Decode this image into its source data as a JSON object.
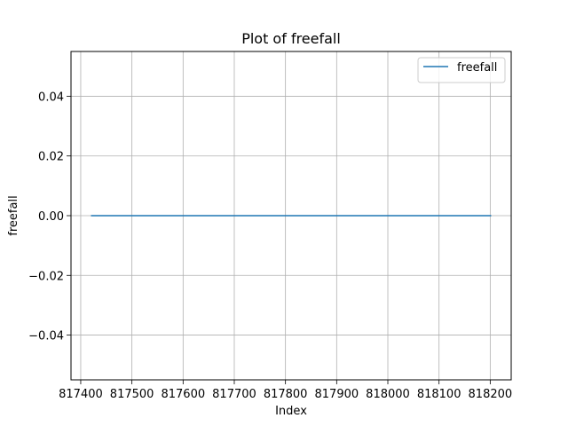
{
  "chart_data": {
    "type": "line",
    "title": "Plot of freefall",
    "xlabel": "Index",
    "ylabel": "freefall",
    "xlim": [
      817381,
      818241
    ],
    "ylim": [
      -0.055,
      0.055
    ],
    "x_ticks": [
      817400,
      817500,
      817600,
      817700,
      817800,
      817900,
      818000,
      818100,
      818200
    ],
    "x_tick_labels": [
      "817400",
      "817500",
      "817600",
      "817700",
      "817800",
      "817900",
      "818000",
      "818100",
      "818200"
    ],
    "y_ticks": [
      -0.04,
      -0.02,
      0.0,
      0.02,
      0.04
    ],
    "y_tick_labels": [
      "−0.04",
      "−0.02",
      "0.00",
      "0.02",
      "0.04"
    ],
    "grid": true,
    "legend_position": "top-right",
    "series": [
      {
        "name": "freefall",
        "color": "#1f77b4",
        "x": [
          817420,
          818202
        ],
        "y": [
          0.0,
          0.0
        ]
      }
    ]
  }
}
